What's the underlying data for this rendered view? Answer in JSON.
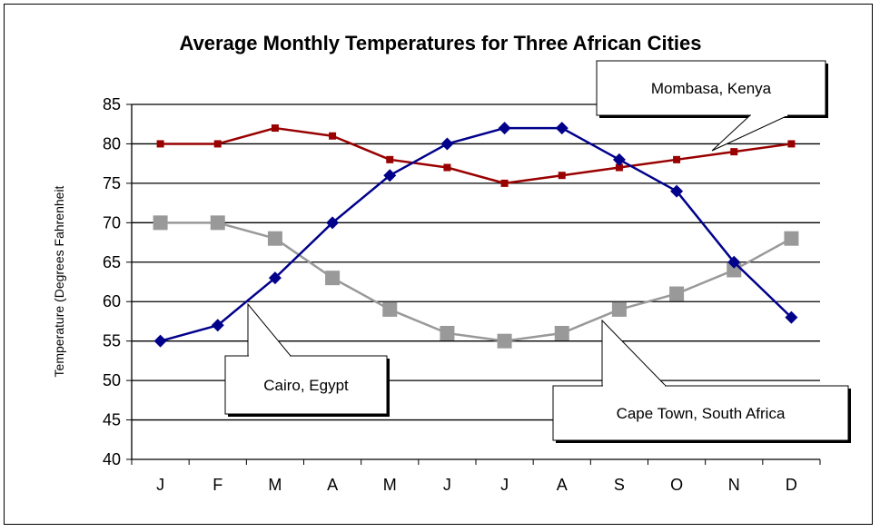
{
  "chart_data": {
    "type": "line",
    "title": "Average Monthly Temperatures for Three African Cities",
    "xlabel": "",
    "ylabel": "Temperature (Degrees Fahrenheit",
    "categories": [
      "J",
      "F",
      "M",
      "A",
      "M",
      "J",
      "J",
      "A",
      "S",
      "O",
      "N",
      "D"
    ],
    "ylim": [
      40,
      85
    ],
    "yticks": [
      40,
      45,
      50,
      55,
      60,
      65,
      70,
      75,
      80,
      85
    ],
    "grid": true,
    "series": [
      {
        "name": "Mombasa, Kenya",
        "color": "#990000",
        "marker": "square",
        "values": [
          80,
          80,
          82,
          81,
          78,
          77,
          75,
          76,
          77,
          78,
          79,
          80
        ]
      },
      {
        "name": "Cairo, Egypt",
        "color": "#00008b",
        "marker": "diamond",
        "values": [
          55,
          57,
          63,
          70,
          76,
          80,
          82,
          82,
          78,
          74,
          65,
          58
        ]
      },
      {
        "name": "Cape Town, South Africa",
        "color": "#999999",
        "marker": "big-square",
        "values": [
          70,
          70,
          68,
          63,
          59,
          56,
          55,
          56,
          59,
          61,
          64,
          68
        ]
      }
    ]
  }
}
